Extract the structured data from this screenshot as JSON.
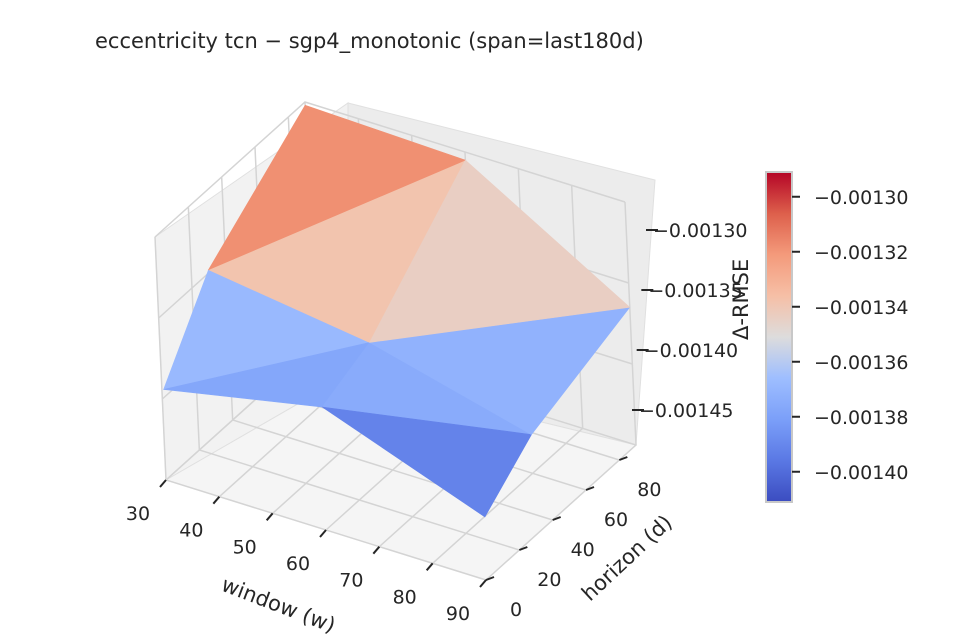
{
  "chart_data": {
    "type": "surface",
    "title": "eccentricity  tcn − sgp4_monotonic  (span=last180d)",
    "xlabel": "window (w)",
    "ylabel": "horizon (d)",
    "zlabel": "Δ-RMSE",
    "x_ticks": [
      "30",
      "40",
      "50",
      "60",
      "70",
      "80",
      "90"
    ],
    "y_ticks": [
      "0",
      "20",
      "40",
      "60",
      "80"
    ],
    "z_ticks": [
      "−0.00130",
      "−0.00135",
      "−0.00140",
      "−0.00145"
    ],
    "zlim": [
      -0.00145,
      -0.0013
    ],
    "x": [
      30,
      60,
      90
    ],
    "y": [
      1,
      30,
      90
    ],
    "z": [
      [
        -0.001395,
        -0.001348,
        -0.001302
      ],
      [
        -0.001375,
        -0.001362,
        -0.001305
      ],
      [
        -0.001412,
        -0.001388,
        -0.001365
      ]
    ],
    "colorbar": {
      "colormap": "coolwarm",
      "range": [
        -0.001411,
        -0.001291
      ],
      "ticks": [
        "−0.00130",
        "−0.00132",
        "−0.00134",
        "−0.00136",
        "−0.00138",
        "−0.00140"
      ],
      "tick_values": [
        -0.0013,
        -0.00132,
        -0.00134,
        -0.00136,
        -0.00138,
        -0.0014
      ]
    },
    "grid": true
  }
}
